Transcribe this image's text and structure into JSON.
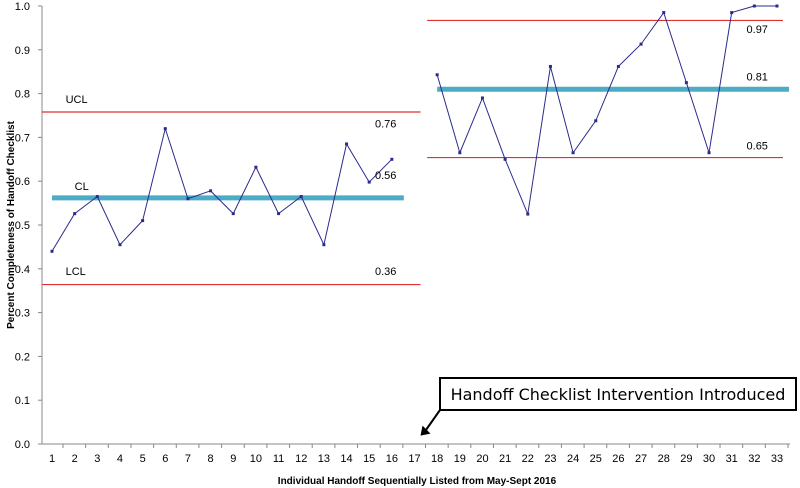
{
  "chart_data": {
    "type": "line",
    "title": "",
    "xlabel": "Individual  Handoff  Sequentially Listed from May-Sept 2016",
    "ylabel": "Percent Completeness of Handoff Checklist",
    "ylim": [
      0.0,
      1.0
    ],
    "xlim": [
      1,
      33
    ],
    "yticks": [
      "0.0",
      "0.1",
      "0.2",
      "0.3",
      "0.4",
      "0.5",
      "0.6",
      "0.7",
      "0.8",
      "0.9",
      "1.0"
    ],
    "yticks_values": [
      0.0,
      0.1,
      0.2,
      0.3,
      0.4,
      0.5,
      0.6,
      0.7,
      0.8,
      0.9,
      1.0
    ],
    "xticks": [
      "1",
      "2",
      "3",
      "4",
      "5",
      "6",
      "7",
      "8",
      "9",
      "10",
      "11",
      "12",
      "13",
      "14",
      "15",
      "16",
      "17",
      "18",
      "19",
      "20",
      "21",
      "22",
      "23",
      "24",
      "25",
      "26",
      "27",
      "28",
      "29",
      "30",
      "31",
      "32",
      "33"
    ],
    "grid": false,
    "series": [
      {
        "x": [
          1,
          2,
          3,
          4,
          5,
          6,
          7,
          8,
          9,
          10,
          11,
          12,
          13,
          14,
          15,
          16
        ],
        "values": [
          0.44,
          0.526,
          0.565,
          0.455,
          0.51,
          0.72,
          0.56,
          0.578,
          0.526,
          0.632,
          0.526,
          0.565,
          0.455,
          0.685,
          0.598,
          0.65
        ],
        "color": "#2b2b8c"
      },
      {
        "x": [
          18,
          19,
          20,
          21,
          22,
          23,
          24,
          25,
          26,
          27,
          28,
          29,
          30,
          31,
          32,
          33
        ],
        "values": [
          0.843,
          0.665,
          0.79,
          0.65,
          0.525,
          0.862,
          0.665,
          0.738,
          0.862,
          0.913,
          0.985,
          0.825,
          0.665,
          0.985,
          1.0,
          1.0
        ],
        "color": "#2b2b8c"
      }
    ],
    "control_lines": [
      {
        "type": "UCL",
        "x_range": [
          1,
          17
        ],
        "y": 0.758,
        "color": "#e03030"
      },
      {
        "type": "CL",
        "x_range": [
          1,
          16
        ],
        "y": 0.562,
        "color": "#4bacc6"
      },
      {
        "type": "LCL",
        "x_range": [
          1,
          17
        ],
        "y": 0.364,
        "color": "#e03030"
      },
      {
        "type": "UCL",
        "x_range": [
          18,
          33
        ],
        "y": 0.967,
        "color": "#e03030"
      },
      {
        "type": "CL",
        "x_range": [
          18,
          33
        ],
        "y": 0.81,
        "color": "#4bacc6"
      },
      {
        "type": "LCL",
        "x_range": [
          18,
          33
        ],
        "y": 0.654,
        "color": "#e03030"
      }
    ],
    "annotations": [
      {
        "text": "UCL",
        "x": 1.6,
        "y": 0.778,
        "anchor": "start"
      },
      {
        "text": "CL",
        "x": 2.0,
        "y": 0.58,
        "anchor": "start"
      },
      {
        "text": "LCL",
        "x": 1.6,
        "y": 0.386,
        "anchor": "start"
      },
      {
        "text": "0.76",
        "x": 16.2,
        "y": 0.723,
        "anchor": "end"
      },
      {
        "text": "0.56",
        "x": 16.2,
        "y": 0.605,
        "anchor": "end"
      },
      {
        "text": "0.36",
        "x": 16.2,
        "y": 0.386,
        "anchor": "end"
      },
      {
        "text": "0.97",
        "x": 32.6,
        "y": 0.938,
        "anchor": "end"
      },
      {
        "text": "0.81",
        "x": 32.6,
        "y": 0.83,
        "anchor": "end"
      },
      {
        "text": "0.65",
        "x": 32.6,
        "y": 0.672,
        "anchor": "end"
      }
    ],
    "callout": {
      "text": "Handoff Checklist Intervention  Introduced",
      "arrow_to": {
        "x": 17,
        "y": 0.01
      }
    }
  }
}
